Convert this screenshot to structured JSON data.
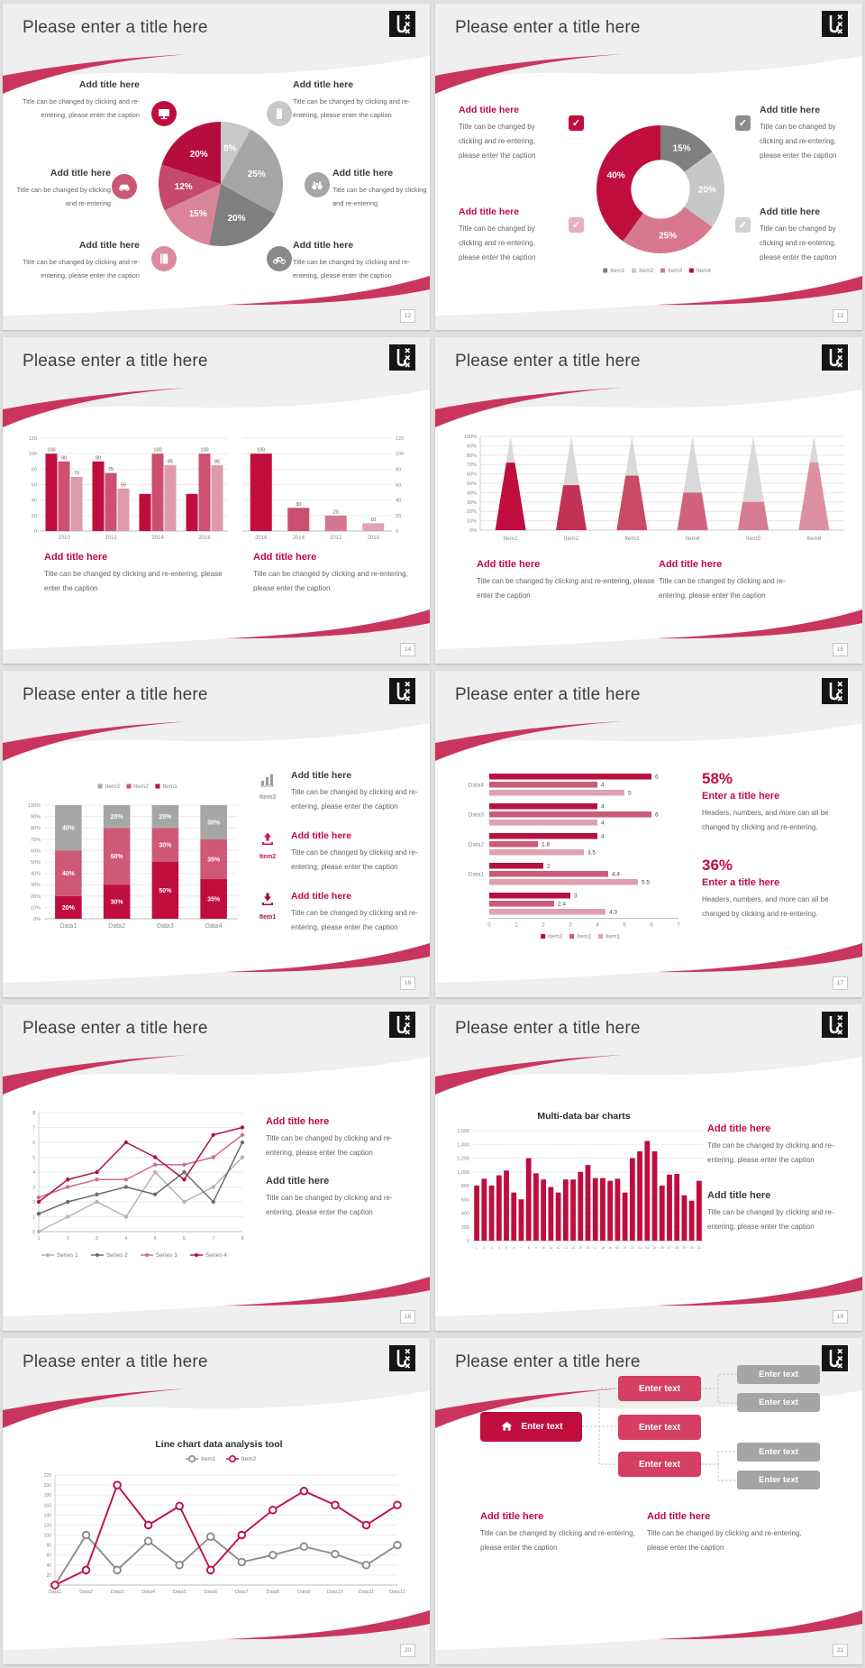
{
  "common": {
    "slide_title": "Please enter a title here",
    "add_title": "Add title here",
    "caption_full": "Title can be changed by clicking and re-entering, please enter the caption",
    "caption_short": "Title can be changed by clicking and re-entering",
    "enter_text": "Enter text"
  },
  "slides": [
    {
      "page": "12"
    },
    {
      "page": "13"
    },
    {
      "page": "14"
    },
    {
      "page": "15"
    },
    {
      "page": "16",
      "items": [
        {
          "label": "Item3"
        },
        {
          "label": "Item2"
        },
        {
          "label": "Item1"
        }
      ]
    },
    {
      "page": "17",
      "stats": [
        {
          "pct": "58%",
          "title": "Enter a title here",
          "caption": "Headers, numbers, and more can all be changed by clicking and re-entering."
        },
        {
          "pct": "36%",
          "title": "Enter a title here",
          "caption": "Headers, numbers, and more can all be changed by clicking and re-entering."
        }
      ]
    },
    {
      "page": "18"
    },
    {
      "page": "19",
      "chart_title": "Multi-data bar charts"
    },
    {
      "page": "20",
      "chart_title": "Line chart data analysis tool"
    },
    {
      "page": "21"
    }
  ],
  "chart_data": [
    {
      "type": "pie",
      "slices": [
        {
          "label": "8%",
          "value": 8,
          "color": "#c7c8ca"
        },
        {
          "label": "25%",
          "value": 25,
          "color": "#a6a6a6"
        },
        {
          "label": "20%",
          "value": 20,
          "color": "#7f7f7f"
        },
        {
          "label": "15%",
          "value": 15,
          "color": "#d9849b"
        },
        {
          "label": "12%",
          "value": 12,
          "color": "#c4496c"
        },
        {
          "label": "20%",
          "value": 20,
          "color": "#b60d3f"
        }
      ]
    },
    {
      "type": "donut",
      "inner_ratio": 0.46,
      "slices": [
        {
          "label": "15%",
          "value": 15,
          "color": "#7f7f7f"
        },
        {
          "label": "20%",
          "value": 20,
          "color": "#c7c7c7"
        },
        {
          "label": "25%",
          "value": 25,
          "color": "#d8788f"
        },
        {
          "label": "40%",
          "value": 40,
          "color": "#bf0d3e"
        }
      ],
      "legend": [
        {
          "label": "Item1",
          "color": "#7f7f7f"
        },
        {
          "label": "Item2",
          "color": "#c7c7c7"
        },
        {
          "label": "Item3",
          "color": "#d8788f"
        },
        {
          "label": "Item4",
          "color": "#bf0d3e"
        }
      ]
    },
    {
      "type": "bar",
      "categories": [
        "2010",
        "2012",
        "2014",
        "2016"
      ],
      "ymax": 120,
      "ystep": 20,
      "yaxis": "left",
      "series": [
        {
          "name": "s1",
          "color": "#bf0d3e",
          "values": [
            100,
            90,
            48,
            48
          ],
          "labels": [
            "100",
            "90",
            "",
            ""
          ]
        },
        {
          "name": "s2",
          "color": "#cc5071",
          "values": [
            90,
            75,
            100,
            100
          ],
          "labels": [
            "90",
            "75",
            "100",
            "100"
          ]
        },
        {
          "name": "s3",
          "color": "#df9aad",
          "values": [
            70,
            55,
            85,
            85
          ],
          "labels": [
            "70",
            "55",
            "85",
            "85"
          ]
        }
      ]
    },
    {
      "type": "bar",
      "categories": [
        "2016",
        "2014",
        "2012",
        "2010"
      ],
      "ymax": 120,
      "ystep": 20,
      "yaxis": "right",
      "series": [
        {
          "name": "s1",
          "color": "#bf0d3e",
          "colors": [
            "#bf0d3e",
            "#c94f6e",
            "#d47790",
            "#e0a2b4"
          ],
          "values": [
            100,
            30,
            20,
            10
          ],
          "labels": [
            "100",
            "30",
            "20",
            "10"
          ]
        }
      ]
    },
    {
      "type": "cones",
      "ymax": 100,
      "ystep": 10,
      "top_color": "#d9d9d9",
      "items": [
        {
          "label": "Item1",
          "pct": 72,
          "color": "#bf0d3e"
        },
        {
          "label": "Item2",
          "pct": 48,
          "color": "#c43156"
        },
        {
          "label": "Item3",
          "pct": 58,
          "color": "#cb4a6a"
        },
        {
          "label": "Item4",
          "pct": 40,
          "color": "#d2637e"
        },
        {
          "label": "Item5",
          "pct": 30,
          "color": "#d77b92"
        },
        {
          "label": "Item6",
          "pct": 72,
          "color": "#dd90a4"
        }
      ]
    },
    {
      "type": "stacked",
      "categories": [
        "Data1",
        "Data2",
        "Data3",
        "Data4"
      ],
      "ymax": 100,
      "ystep": 10,
      "series": [
        {
          "name": "Item1",
          "color": "#bf0d3e",
          "values": [
            20,
            30,
            50,
            35
          ]
        },
        {
          "name": "Item2",
          "color": "#ce5876",
          "values": [
            40,
            50,
            30,
            35
          ]
        },
        {
          "name": "Item3",
          "color": "#a6a6a6",
          "values": [
            40,
            20,
            20,
            30
          ]
        }
      ],
      "legend": [
        {
          "label": "Item3",
          "color": "#a6a6a6"
        },
        {
          "label": "Item2",
          "color": "#ce5876"
        },
        {
          "label": "Item1",
          "color": "#bf0d3e"
        }
      ]
    },
    {
      "type": "hbar",
      "xmax": 7,
      "xstep": 1,
      "colors": [
        "#b5123f",
        "#cc5b77",
        "#dfa0b1"
      ],
      "groups": [
        {
          "label": "Data4",
          "values": [
            6,
            4,
            5
          ]
        },
        {
          "label": "Data3",
          "values": [
            4,
            6,
            4
          ]
        },
        {
          "label": "Data2",
          "values": [
            4,
            1.8,
            3.5
          ]
        },
        {
          "label": "Data1",
          "values": [
            2,
            4.4,
            5.5
          ]
        },
        {
          "label": "",
          "values": [
            3,
            2.4,
            4.3
          ]
        }
      ],
      "legend": [
        {
          "label": "Item3",
          "color": "#b5123f"
        },
        {
          "label": "Item2",
          "color": "#cc5b77"
        },
        {
          "label": "Item1",
          "color": "#dfa0b1"
        }
      ]
    },
    {
      "type": "line",
      "x_labels": [
        "1",
        "2",
        "3",
        "4",
        "5",
        "6",
        "7",
        "8"
      ],
      "ymax": 8,
      "ystep": 1,
      "marker": "dot",
      "legend_pos": "bottom",
      "series": [
        {
          "name": "Series 1",
          "color": "#b3b3b3",
          "values": [
            0,
            1,
            2,
            1,
            4,
            2,
            3,
            5
          ]
        },
        {
          "name": "Series 2",
          "color": "#6e6e6e",
          "values": [
            1.2,
            2,
            2.5,
            3,
            2.5,
            4,
            2,
            6
          ]
        },
        {
          "name": "Series 3",
          "color": "#d16d88",
          "values": [
            2.3,
            3,
            3.5,
            3.5,
            4.5,
            4.5,
            5,
            6.5
          ]
        },
        {
          "name": "Series 4",
          "color": "#b5123f",
          "values": [
            2,
            3.5,
            4,
            6,
            5,
            3.5,
            6.5,
            7
          ]
        }
      ]
    },
    {
      "type": "bar",
      "comma": true,
      "ymax": 1600,
      "ystep": 200,
      "yaxis": "left",
      "categories": [
        "1",
        "2",
        "3",
        "4",
        "5",
        "6",
        "7",
        "8",
        "9",
        "10",
        "11",
        "12",
        "13",
        "14",
        "15",
        "16",
        "17",
        "18",
        "19",
        "20",
        "21",
        "22",
        "23",
        "24",
        "25",
        "26",
        "27",
        "28",
        "29",
        "30",
        "31"
      ],
      "series": [
        {
          "name": "daily",
          "color": "#bf0d3e",
          "values": [
            800,
            900,
            800,
            950,
            1020,
            700,
            600,
            1200,
            980,
            890,
            780,
            700,
            890,
            890,
            1000,
            1100,
            910,
            910,
            870,
            900,
            700,
            1200,
            1300,
            1450,
            1300,
            800,
            960,
            970,
            660,
            580,
            870
          ]
        }
      ]
    },
    {
      "type": "line",
      "x_labels": [
        "Data1",
        "Data2",
        "Data3",
        "Data4",
        "Data5",
        "Data6",
        "Data7",
        "Data8",
        "Data9",
        "Data10",
        "Data11",
        "Data12"
      ],
      "ymax": 220,
      "ystep": 20,
      "marker": "ring",
      "legend_pos": "top",
      "series": [
        {
          "name": "Item1",
          "color": "#8c8c8c",
          "values": [
            0,
            100,
            30,
            88,
            40,
            97,
            46,
            60,
            77,
            62,
            40,
            80
          ]
        },
        {
          "name": "Item2",
          "color": "#bf1040",
          "values": [
            0,
            30,
            200,
            120,
            158,
            30,
            100,
            150,
            188,
            160,
            120,
            160
          ]
        }
      ]
    }
  ]
}
